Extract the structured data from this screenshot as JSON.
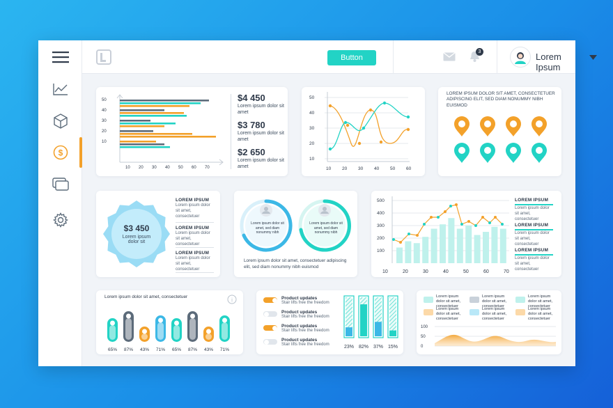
{
  "colors": {
    "teal": "#22d3c5",
    "orange": "#f3a12a",
    "gray": "#5c6b7a",
    "lightteal": "#bff1ec",
    "dark": "#2f3a4a"
  },
  "sidebar": {
    "items": [
      {
        "icon": "menu-icon"
      },
      {
        "icon": "line-chart-icon"
      },
      {
        "icon": "cube-icon"
      },
      {
        "icon": "dollar-icon",
        "active": true
      },
      {
        "icon": "cards-icon"
      },
      {
        "icon": "gear-icon"
      }
    ]
  },
  "topbar": {
    "button_label": "Button",
    "notification_count": "3",
    "user_name": "Lorem Ipsum"
  },
  "card_hbar": {
    "axis_y": [
      "50",
      "40",
      "30",
      "20",
      "10"
    ],
    "axis_x": [
      "10",
      "20",
      "30",
      "40",
      "50",
      "60",
      "70"
    ],
    "stats": [
      {
        "value": "$4 450",
        "text": "Lorem ipsum dolor sit amet"
      },
      {
        "value": "$3 780",
        "text": "Lorem ipsum dolor sit amet"
      },
      {
        "value": "$2 650",
        "text": "Lorem ipsum dolor sit amet"
      }
    ]
  },
  "card_line": {
    "axis_y": [
      "50",
      "40",
      "30",
      "20",
      "10"
    ],
    "axis_x": [
      "10",
      "20",
      "30",
      "40",
      "50",
      "60"
    ]
  },
  "card_pins": {
    "title": "LOREM IPSUM DOLOR SIT AMET, CONSECTETUER ADIPISCING ELIT, SED DIAM NONUMMY NIBH EUISMOD"
  },
  "card_badge": {
    "value": "$3 450",
    "text": "Lorem ipsum dolor sit",
    "items": [
      {
        "title": "LOREM IPSUM",
        "text": "Lorem ipsum dolor sit amet, consectetuer"
      },
      {
        "title": "LOREM IPSUM",
        "text": "Lorem ipsum dolor sit amet, consectetuer"
      },
      {
        "title": "LOREM IPSUM",
        "text": "Lorem ipsum dolor sit amet, consectetuer"
      }
    ]
  },
  "card_rings": {
    "ring_text": "Lorem ipsum dolor sit amet, sed diam nonummy nibh",
    "caption": "Lorem ipsum dolor sit amet, consectetuer adipiscing elit, sed diam nonummy nibh euismod"
  },
  "card_combo": {
    "axis_y": [
      "500",
      "400",
      "300",
      "200",
      "100"
    ],
    "axis_x": [
      "10",
      "20",
      "30",
      "40",
      "50",
      "60",
      "70"
    ],
    "items": [
      {
        "title": "LOREM IPSUM",
        "text": "Lorem ipsum dolor sit amet, consectetuer"
      },
      {
        "title": "LOREM IPSUM",
        "text": "Lorem ipsum dolor sit amet, consectetuer"
      },
      {
        "title": "LOREM IPSUM",
        "text": "Lorem ipsum dolor sit amet, consectetuer"
      }
    ]
  },
  "card_pills": {
    "title": "Lorem ipsum dolor sit amet, consectetuer",
    "labels": [
      "65%",
      "87%",
      "43%",
      "71%",
      "65%",
      "87%",
      "43%",
      "71%"
    ]
  },
  "card_toggles": {
    "items": [
      {
        "title": "Product updates",
        "text": "Stair lifts free the freedom",
        "on": true
      },
      {
        "title": "Product updates",
        "text": "Stair lifts free the freedom",
        "on": false
      },
      {
        "title": "Product updates",
        "text": "Stair lifts free the freedom",
        "on": true
      },
      {
        "title": "Product updates",
        "text": "Stair lifts free the freedom",
        "on": false
      }
    ],
    "bar_labels": [
      "23%",
      "82%",
      "37%",
      "15%"
    ]
  },
  "card_area": {
    "legend": [
      "Lorem ipsum dolor sit amet, consectetuer",
      "Lorem ipsum dolor sit amet, consectetuer",
      "Lorem ipsum dolor sit amet, consectetuer",
      "Lorem ipsum dolor sit amet, consectetuer",
      "Lorem ipsum dolor sit amet, consectetuer",
      "Lorem ipsum dolor sit amet, consectetuer"
    ],
    "axis_y": [
      "100",
      "50",
      "0"
    ]
  }
}
